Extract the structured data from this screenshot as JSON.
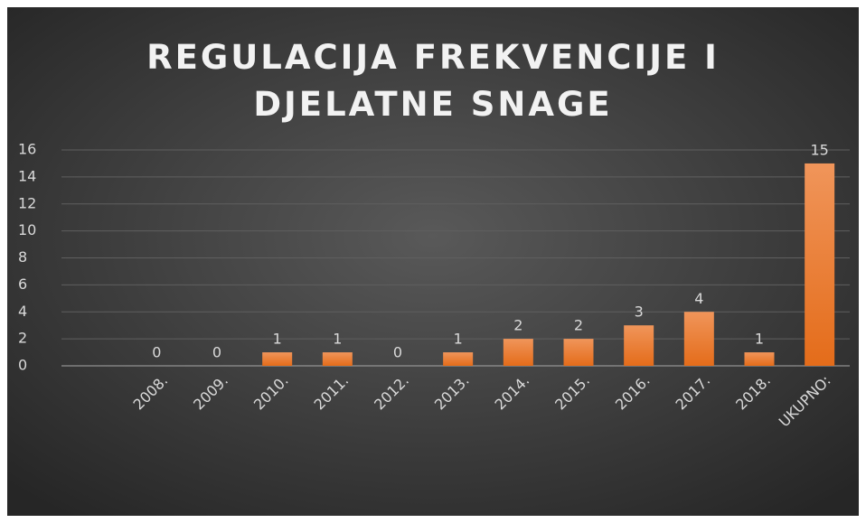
{
  "chart_data": {
    "type": "bar",
    "title": "REGULACIJA FREKVENCIJE I DJELATNE SNAGE",
    "categories": [
      "2008.",
      "2009.",
      "2010.",
      "2011.",
      "2012.",
      "2013.",
      "2014.",
      "2015.",
      "2016.",
      "2017.",
      "2018.",
      "UKUPNO:"
    ],
    "values": [
      0,
      0,
      1,
      1,
      0,
      1,
      2,
      2,
      3,
      4,
      1,
      15
    ],
    "color": "#ed7d31",
    "ylim": [
      0,
      16
    ],
    "yticks": [
      0,
      2,
      4,
      6,
      8,
      10,
      12,
      14,
      16
    ],
    "grid": true
  }
}
